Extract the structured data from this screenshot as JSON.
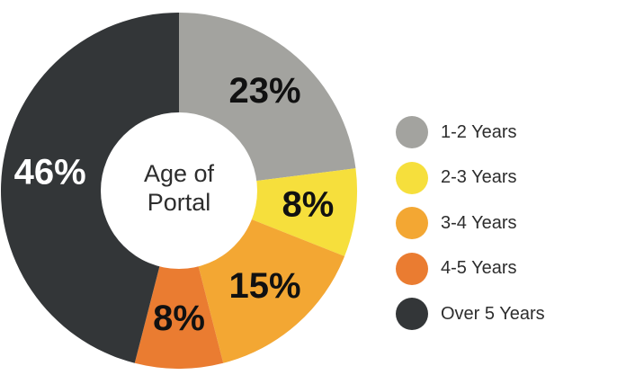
{
  "chart_data": {
    "type": "pie",
    "donut": true,
    "center_title_lines": [
      "Age of",
      "Portal"
    ],
    "categories": [
      "1-2 Years",
      "2-3 Years",
      "3-4 Years",
      "4-5 Years",
      "Over 5 Years"
    ],
    "values": [
      23,
      8,
      15,
      8,
      46
    ],
    "value_labels": [
      "23%",
      "8%",
      "15%",
      "8%",
      "46%"
    ],
    "colors": [
      "#a3a39f",
      "#f6df3c",
      "#f3a733",
      "#ea7c31",
      "#333638"
    ],
    "label_colors": [
      "#111111",
      "#111111",
      "#111111",
      "#111111",
      "#ffffff"
    ],
    "legend_position": "right"
  }
}
